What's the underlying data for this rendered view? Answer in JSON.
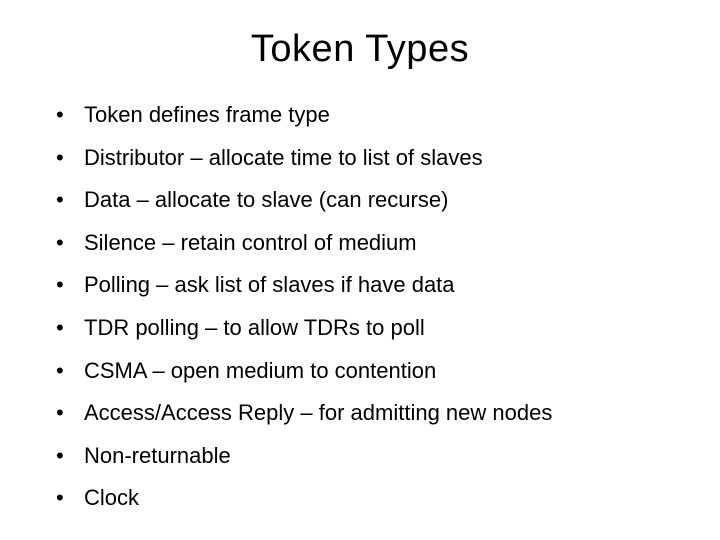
{
  "slide": {
    "title": "Token Types",
    "title_fontsize": 38,
    "body_fontsize": 22,
    "background_color": "#ffffff",
    "text_color": "#000000",
    "bullet_char": "•",
    "bullets": [
      "Token defines frame type",
      "Distributor – allocate time to list of slaves",
      "Data – allocate to slave (can recurse)",
      "Silence – retain control of medium",
      "Polling – ask list of slaves if have data",
      "TDR polling – to allow TDRs to poll",
      "CSMA – open medium to contention",
      "Access/Access Reply – for admitting new nodes",
      "Non-returnable",
      "Clock"
    ]
  }
}
